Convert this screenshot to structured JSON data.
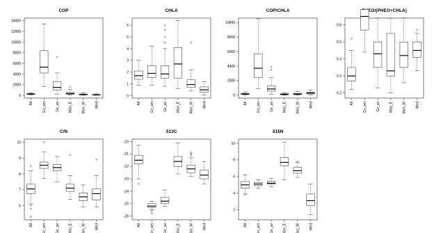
{
  "chart_data": [
    {
      "type": "box",
      "title": "COP",
      "categories": [
        "All",
        "Gir_am",
        "Gir_av",
        "Man_E",
        "Man_W",
        "Med"
      ],
      "yticks": [
        0,
        2000,
        4000,
        6000,
        8000,
        10000,
        12000,
        14000
      ],
      "ylim": [
        -500,
        14500
      ],
      "boxes": [
        {
          "lo": 100,
          "q1": 200,
          "med": 260,
          "q3": 340,
          "hi": 500,
          "out": []
        },
        {
          "lo": 1700,
          "q1": 4200,
          "med": 5300,
          "q3": 8400,
          "hi": 13400,
          "out": []
        },
        {
          "lo": 250,
          "q1": 1000,
          "med": 1500,
          "q3": 2600,
          "hi": 4200,
          "out": [
            7200
          ]
        },
        {
          "lo": 50,
          "q1": 200,
          "med": 350,
          "q3": 550,
          "hi": 1100,
          "out": [
            1600
          ]
        },
        {
          "lo": 20,
          "q1": 100,
          "med": 180,
          "q3": 260,
          "hi": 450,
          "out": []
        },
        {
          "lo": 10,
          "q1": 60,
          "med": 110,
          "q3": 170,
          "hi": 300,
          "out": []
        }
      ]
    },
    {
      "type": "box",
      "title": "CHLA",
      "categories": [
        "All",
        "Gir_am",
        "Gir_av",
        "Man_E",
        "Man_W",
        "Med"
      ],
      "yticks": [
        0,
        1,
        2,
        3,
        4,
        5,
        6
      ],
      "ylim": [
        -0.2,
        6.6
      ],
      "boxes": [
        {
          "lo": 0.9,
          "q1": 1.4,
          "med": 1.7,
          "q3": 2.1,
          "hi": 3.0,
          "out": []
        },
        {
          "lo": 0.9,
          "q1": 1.55,
          "med": 1.9,
          "q3": 2.55,
          "hi": 4.2,
          "out": []
        },
        {
          "lo": 0.8,
          "q1": 1.5,
          "med": 1.85,
          "q3": 2.55,
          "hi": 4.0,
          "out": [
            4.5,
            5.0,
            5.6,
            6.0
          ]
        },
        {
          "lo": 0.6,
          "q1": 1.5,
          "med": 2.7,
          "q3": 4.1,
          "hi": 6.4,
          "out": []
        },
        {
          "lo": 0.4,
          "q1": 0.7,
          "med": 0.95,
          "q3": 1.35,
          "hi": 2.2,
          "out": [
            4.5
          ]
        },
        {
          "lo": 0.05,
          "q1": 0.3,
          "med": 0.5,
          "q3": 0.75,
          "hi": 1.2,
          "out": []
        }
      ]
    },
    {
      "type": "box",
      "title": "COP/CHLA",
      "categories": [
        "All",
        "Gir_am",
        "Gir_av",
        "Man_E",
        "Man_W",
        "Med"
      ],
      "yticks": [
        0,
        2000,
        4000,
        6000,
        8000,
        10000
      ],
      "ylim": [
        -400,
        10600
      ],
      "boxes": [
        {
          "lo": 30,
          "q1": 100,
          "med": 160,
          "q3": 230,
          "hi": 400,
          "out": []
        },
        {
          "lo": 900,
          "q1": 2400,
          "med": 3700,
          "q3": 5700,
          "hi": 10500,
          "out": []
        },
        {
          "lo": 100,
          "q1": 550,
          "med": 850,
          "q3": 1300,
          "hi": 2400,
          "out": [
            3500,
            3900
          ]
        },
        {
          "lo": 10,
          "q1": 60,
          "med": 110,
          "q3": 200,
          "hi": 350,
          "out": []
        },
        {
          "lo": 10,
          "q1": 80,
          "med": 150,
          "q3": 250,
          "hi": 500,
          "out": []
        },
        {
          "lo": 40,
          "q1": 180,
          "med": 290,
          "q3": 400,
          "hi": 700,
          "out": []
        }
      ]
    },
    {
      "type": "box",
      "title": "PHEO/(PHEO+CHLA)",
      "categories": [
        "All",
        "Gir_am",
        "Gir_av",
        "Man_E",
        "Man_W",
        "Med"
      ],
      "yticks": [
        0.2,
        0.3,
        0.4,
        0.5,
        0.6
      ],
      "ylim": [
        0.17,
        0.64
      ],
      "boxes": [
        {
          "lo": 0.22,
          "q1": 0.27,
          "med": 0.3,
          "q3": 0.35,
          "hi": 0.45,
          "out": [
            0.52
          ]
        },
        {
          "lo": 0.44,
          "q1": 0.57,
          "med": 0.65,
          "q3": 0.69,
          "hi": 0.8,
          "out": []
        },
        {
          "lo": 0.23,
          "q1": 0.35,
          "med": 0.43,
          "q3": 0.5,
          "hi": 0.73,
          "out": []
        },
        {
          "lo": 0.2,
          "q1": 0.3,
          "med": 0.33,
          "q3": 0.55,
          "hi": 0.74,
          "out": []
        },
        {
          "lo": 0.26,
          "q1": 0.35,
          "med": 0.42,
          "q3": 0.5,
          "hi": 0.68,
          "out": []
        },
        {
          "lo": 0.33,
          "q1": 0.41,
          "med": 0.45,
          "q3": 0.5,
          "hi": 0.55,
          "out": [
            0.57
          ]
        }
      ]
    },
    {
      "type": "box",
      "title": "C/N",
      "categories": [
        "All",
        "Gir_am",
        "Gir_av",
        "Man_E",
        "Man_W",
        "Med"
      ],
      "yticks": [
        6,
        7,
        8,
        9,
        10
      ],
      "ylim": [
        5.1,
        10.2
      ],
      "boxes": [
        {
          "lo": 6.1,
          "q1": 6.75,
          "med": 7.05,
          "q3": 7.35,
          "hi": 8.2,
          "out": [
            8.5,
            6.0,
            5.8,
            5.3
          ]
        },
        {
          "lo": 7.7,
          "q1": 8.35,
          "med": 8.55,
          "q3": 8.75,
          "hi": 9.4,
          "out": [
            10.0
          ]
        },
        {
          "lo": 7.5,
          "q1": 8.2,
          "med": 8.4,
          "q3": 8.6,
          "hi": 9.1,
          "out": []
        },
        {
          "lo": 6.4,
          "q1": 6.9,
          "med": 7.1,
          "q3": 7.35,
          "hi": 7.9,
          "out": [
            9.2
          ]
        },
        {
          "lo": 5.9,
          "q1": 6.3,
          "med": 6.55,
          "q3": 6.8,
          "hi": 7.3,
          "out": []
        },
        {
          "lo": 5.9,
          "q1": 6.35,
          "med": 6.75,
          "q3": 7.05,
          "hi": 7.9,
          "out": [
            8.9
          ]
        }
      ]
    },
    {
      "type": "box",
      "title": "δ13C",
      "categories": [
        "All",
        "Gir_am",
        "Gir_av",
        "Man_E",
        "Man_W",
        "Med"
      ],
      "yticks": [
        -20,
        -21,
        -22,
        -23,
        -24,
        -25,
        -26
      ],
      "ylim": [
        -26.3,
        -19.8
      ],
      "boxes": [
        {
          "lo": -23.0,
          "q1": -21.8,
          "med": -21.5,
          "q3": -21.1,
          "hi": -20.3,
          "out": [
            -23.4
          ]
        },
        {
          "lo": -25.5,
          "q1": -25.3,
          "med": -25.2,
          "q3": -25.0,
          "hi": -24.8,
          "out": [
            -25.6,
            -25.8
          ]
        },
        {
          "lo": -25.2,
          "q1": -25.0,
          "med": -24.8,
          "q3": -24.5,
          "hi": -23.9,
          "out": []
        },
        {
          "lo": -22.6,
          "q1": -22.0,
          "med": -21.6,
          "q3": -21.2,
          "hi": -20.1,
          "out": []
        },
        {
          "lo": -22.8,
          "q1": -22.5,
          "med": -22.2,
          "q3": -21.9,
          "hi": -21.3,
          "out": [
            -21.1,
            -21.0,
            -20.9
          ]
        },
        {
          "lo": -23.4,
          "q1": -23.0,
          "med": -22.7,
          "q3": -22.3,
          "hi": -21.6,
          "out": []
        }
      ]
    },
    {
      "type": "box",
      "title": "δ15N",
      "categories": [
        "All",
        "Gir_am",
        "Gir_av",
        "Man_E",
        "Man_W",
        "Med"
      ],
      "yticks": [
        2,
        4,
        6,
        8,
        10
      ],
      "ylim": [
        0.8,
        10.5
      ],
      "boxes": [
        {
          "lo": 3.9,
          "q1": 4.6,
          "med": 5.0,
          "q3": 5.4,
          "hi": 6.2,
          "out": [
            3.8
          ]
        },
        {
          "lo": 4.6,
          "q1": 4.9,
          "med": 5.1,
          "q3": 5.3,
          "hi": 5.6,
          "out": []
        },
        {
          "lo": 4.8,
          "q1": 5.1,
          "med": 5.2,
          "q3": 5.45,
          "hi": 5.8,
          "out": []
        },
        {
          "lo": 5.6,
          "q1": 7.3,
          "med": 7.7,
          "q3": 8.3,
          "hi": 10.1,
          "out": []
        },
        {
          "lo": 5.9,
          "q1": 6.4,
          "med": 6.7,
          "q3": 7.1,
          "hi": 7.7,
          "out": [
            7.8
          ]
        },
        {
          "lo": 1.4,
          "q1": 2.5,
          "med": 3.1,
          "q3": 3.9,
          "hi": 5.1,
          "out": []
        }
      ]
    }
  ]
}
